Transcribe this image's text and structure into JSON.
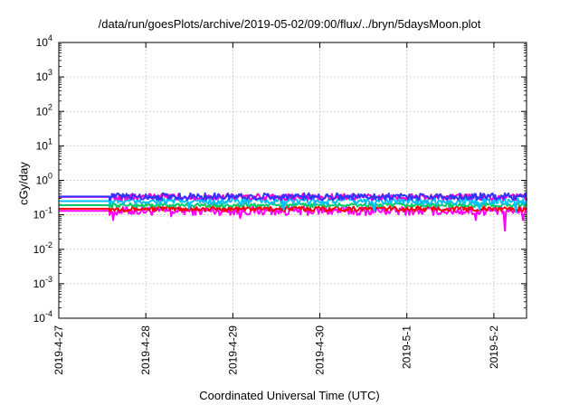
{
  "chart_data": {
    "type": "line",
    "title": "/data/run/goesPlots/archive/2019-05-02/09:00/flux/../bryn/5daysMoon.plot",
    "xlabel": "Coordinated Universal Time (UTC)",
    "ylabel": "cGy/day",
    "x_range": [
      "2019-04-27T00:00",
      "2019-05-02T09:00"
    ],
    "x_ticks": [
      "2019-4-27",
      "2019-4-28",
      "2019-4-29",
      "2019-4-30",
      "2019-5-1",
      "2019-5-2"
    ],
    "y_scale": "log",
    "ylim": [
      0.0001,
      10000
    ],
    "y_ticks": [
      {
        "mant": "10",
        "exp": "4"
      },
      {
        "mant": "10",
        "exp": "3"
      },
      {
        "mant": "10",
        "exp": "2"
      },
      {
        "mant": "10",
        "exp": "1"
      },
      {
        "mant": "10",
        "exp": "0"
      },
      {
        "mant": "10",
        "exp": "-1"
      },
      {
        "mant": "10",
        "exp": "-2"
      },
      {
        "mant": "10",
        "exp": "-3"
      },
      {
        "mant": "10",
        "exp": "-4"
      }
    ],
    "grid": true,
    "series": [
      {
        "color": "#ff00ff",
        "baseline": 0.13,
        "data_start": "2019-04-27T14:00",
        "noise": 0.25,
        "dips": [
          [
            "2019-04-27T15:00",
            0.07
          ],
          [
            "2019-04-28T07:00",
            0.09
          ],
          [
            "2019-04-29T02:00",
            0.08
          ],
          [
            "2019-04-30T11:00",
            0.1
          ],
          [
            "2019-05-01T19:00",
            0.07
          ],
          [
            "2019-05-02T03:00",
            0.035
          ],
          [
            "2019-05-02T08:00",
            0.07
          ]
        ]
      },
      {
        "color": "#ff0000",
        "baseline": 0.15,
        "data_start": "2019-04-27T14:00",
        "noise": 0.15,
        "dips": []
      },
      {
        "color": "#00cc66",
        "baseline": 0.19,
        "data_start": "2019-04-27T14:00",
        "noise": 0.12,
        "dips": []
      },
      {
        "color": "#00bfff",
        "baseline": 0.25,
        "data_start": "2019-04-27T14:00",
        "noise": 0.2,
        "dips": [
          [
            "2019-04-28T12:00",
            0.15
          ],
          [
            "2019-04-29T14:00",
            0.14
          ],
          [
            "2019-04-30T15:00",
            0.13
          ],
          [
            "2019-05-01T20:00",
            0.14
          ],
          [
            "2019-05-02T06:00",
            0.12
          ]
        ]
      },
      {
        "color": "#ff00cc",
        "baseline": 0.33,
        "data_start": "2019-04-27T14:00",
        "noise": 0.18,
        "dips": []
      },
      {
        "color": "#3333ff",
        "baseline": 0.34,
        "data_start": "2019-04-27T14:00",
        "noise": 0.2,
        "dips": []
      }
    ]
  }
}
